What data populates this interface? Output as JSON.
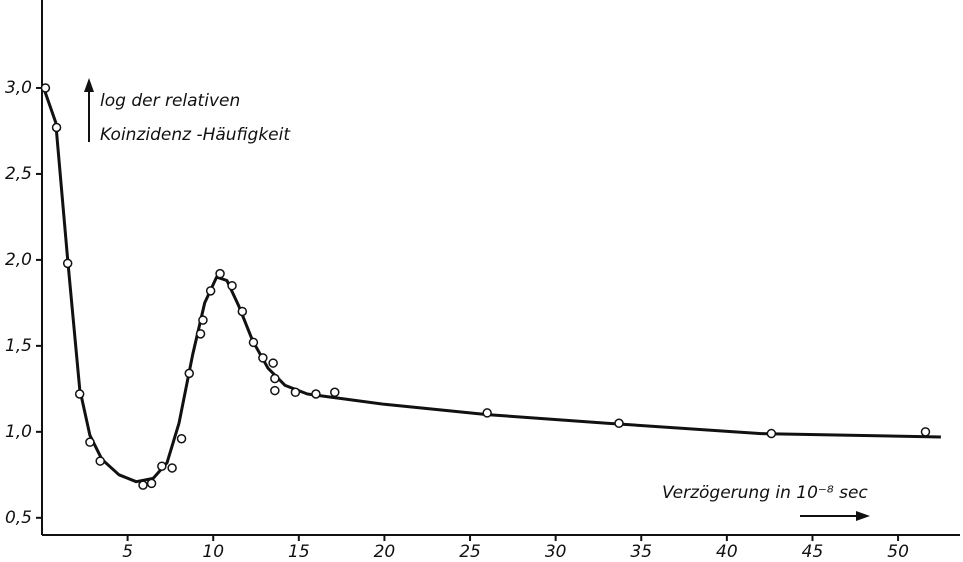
{
  "chart_data": {
    "type": "scatter",
    "ylabel_lines": [
      "log der relativen",
      "Koinzidenz -Häufigkeit"
    ],
    "xlabel": "Verzögerung in 10⁻⁸ sec",
    "xlim": [
      0,
      53.5
    ],
    "ylim": [
      0.4,
      3.5
    ],
    "xticks": [
      5,
      10,
      15,
      20,
      25,
      30,
      35,
      40,
      45,
      50
    ],
    "yticks": [
      {
        "value": 0.5,
        "label": "0,5"
      },
      {
        "value": 1.0,
        "label": "1,0"
      },
      {
        "value": 1.5,
        "label": "1,5"
      },
      {
        "value": 2.0,
        "label": "2,0"
      },
      {
        "value": 2.5,
        "label": "2,5"
      },
      {
        "value": 3.0,
        "label": "3,0"
      }
    ],
    "grid": false,
    "series": [
      {
        "marker": "open-circle",
        "color": "#111",
        "x": [
          0.2,
          0.85,
          1.5,
          2.2,
          2.8,
          3.4,
          5.9,
          6.4,
          7.0,
          7.6,
          8.15,
          8.6,
          9.26,
          9.4,
          9.85,
          10.4,
          11.1,
          11.7,
          12.35,
          12.9,
          13.5,
          13.6,
          13.6,
          14.8,
          16.0,
          17.1,
          26.0,
          33.7,
          42.6,
          51.6
        ],
        "values": [
          3.0,
          2.77,
          1.98,
          1.22,
          0.94,
          0.83,
          0.69,
          0.7,
          0.8,
          0.79,
          0.96,
          1.34,
          1.57,
          1.65,
          1.82,
          1.92,
          1.85,
          1.7,
          1.52,
          1.43,
          1.4,
          1.31,
          1.24,
          1.23,
          1.22,
          1.23,
          1.11,
          1.05,
          0.99,
          1.0
        ]
      },
      {
        "marker": "line",
        "color": "#111",
        "x": [
          0.1,
          0.8,
          1.5,
          2.2,
          2.8,
          3.5,
          4.5,
          5.5,
          6.5,
          7.3,
          8.0,
          8.8,
          9.5,
          10.2,
          10.8,
          11.5,
          12.3,
          13.2,
          14.2,
          15.5,
          20,
          26,
          33,
          42,
          52.5
        ],
        "values": [
          3.0,
          2.8,
          2.0,
          1.25,
          0.98,
          0.84,
          0.75,
          0.71,
          0.73,
          0.82,
          1.05,
          1.45,
          1.75,
          1.9,
          1.88,
          1.73,
          1.53,
          1.37,
          1.27,
          1.22,
          1.16,
          1.1,
          1.05,
          0.99,
          0.97
        ]
      }
    ]
  }
}
